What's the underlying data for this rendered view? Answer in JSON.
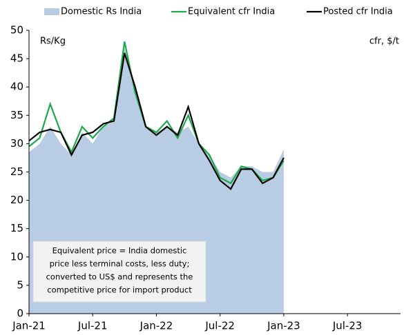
{
  "chart_data": {
    "type": "line",
    "y_label": "Rs/Kg",
    "y2_label": "cfr, $/t",
    "x": [
      "2021-01",
      "2021-02",
      "2021-03",
      "2021-04",
      "2021-05",
      "2021-06",
      "2021-07",
      "2021-08",
      "2021-09",
      "2021-10",
      "2021-11",
      "2021-12",
      "2022-01",
      "2022-02",
      "2022-03",
      "2022-04",
      "2022-05",
      "2022-06",
      "2022-07",
      "2022-08",
      "2022-09",
      "2022-10",
      "2022-11",
      "2022-12",
      "2023-01"
    ],
    "xlim": [
      "2021-01",
      "2023-12"
    ],
    "xticks": [
      {
        "value": "2021-01",
        "label": "Jan-21"
      },
      {
        "value": "2021-07",
        "label": "Jul-21"
      },
      {
        "value": "2022-01",
        "label": "Jan-22"
      },
      {
        "value": "2022-07",
        "label": "Jul-22"
      },
      {
        "value": "2023-01",
        "label": "Jan-23"
      },
      {
        "value": "2023-07",
        "label": "Jul-23"
      }
    ],
    "ylim": [
      0,
      50
    ],
    "yticks": [
      0,
      5,
      10,
      15,
      20,
      25,
      30,
      35,
      40,
      45,
      50
    ],
    "series": [
      {
        "name": "Domestic Rs India",
        "kind": "area",
        "color": "#b8cce4",
        "values": [
          28.5,
          30,
          33,
          30,
          28,
          32,
          30,
          33,
          34,
          47,
          40,
          33,
          32,
          33,
          32,
          33,
          30,
          28,
          25,
          24,
          26,
          26,
          25,
          25,
          29
        ]
      },
      {
        "name": "Equivalent cfr India",
        "kind": "line",
        "color": "#1aaa4a",
        "values": [
          29.5,
          31,
          37,
          32,
          28.5,
          33,
          31,
          33,
          34.5,
          48,
          39,
          33,
          32,
          34,
          31,
          35,
          30,
          28,
          24,
          23,
          26,
          25.5,
          23.5,
          24,
          27
        ]
      },
      {
        "name": "Posted cfr India",
        "kind": "line",
        "color": "#000000",
        "values": [
          30.5,
          32,
          32.5,
          32,
          28,
          31.5,
          32,
          33.5,
          34,
          46,
          40,
          33,
          31.5,
          33,
          31.5,
          36.5,
          30,
          27,
          23.5,
          22,
          25.5,
          25.5,
          23,
          24,
          27.5
        ]
      }
    ],
    "annotation": [
      "Equivalent price = India domestic",
      "price less terminal costs, less duty;",
      "converted to US$ and represents the",
      "competitive price for import product"
    ]
  }
}
